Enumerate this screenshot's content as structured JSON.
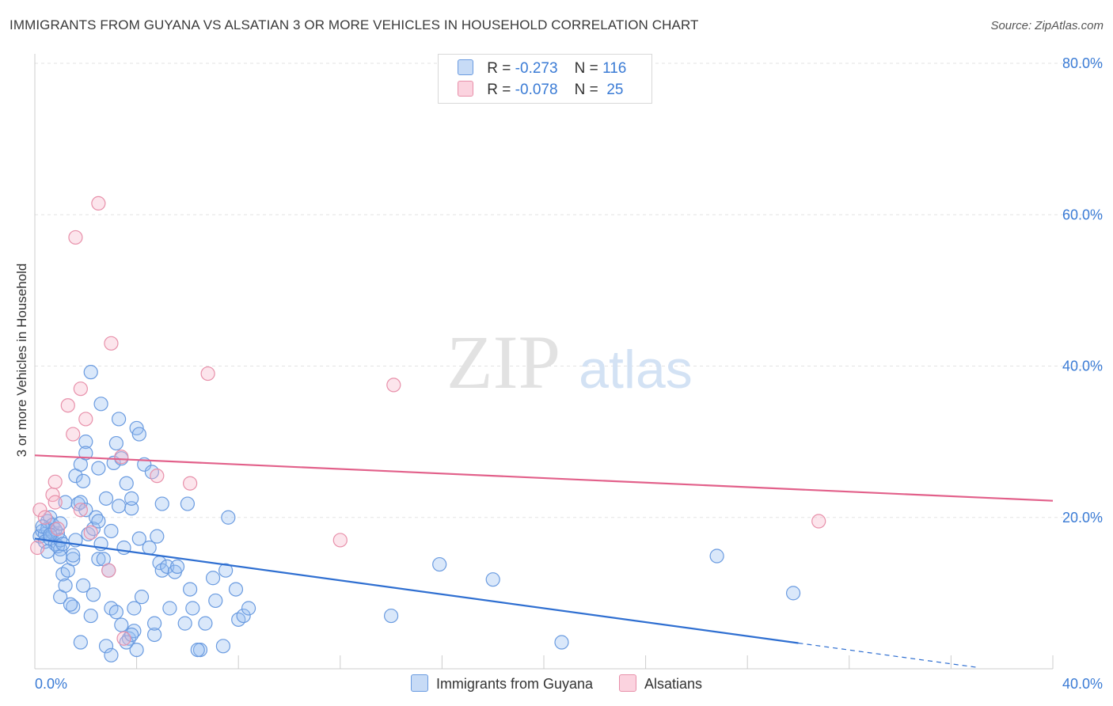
{
  "title": "IMMIGRANTS FROM GUYANA VS ALSATIAN 3 OR MORE VEHICLES IN HOUSEHOLD CORRELATION CHART",
  "source": "Source: ZipAtlas.com",
  "watermark": {
    "zip": "ZIP",
    "atlas": "atlas"
  },
  "legend": {
    "rows": [
      {
        "r_label": "R =",
        "r": "-0.273",
        "n_label": "N =",
        "n": "116",
        "color": "#aac8f0",
        "border": "#6a9be0"
      },
      {
        "r_label": "R =",
        "r": "-0.078",
        "n_label": "N =",
        "n": "25",
        "color": "#f7c2d2",
        "border": "#e890aa"
      }
    ]
  },
  "bottom_legend": [
    "Immigrants from Guyana",
    "Alsatians"
  ],
  "chart_data": {
    "type": "scatter",
    "title": "IMMIGRANTS FROM GUYANA VS ALSATIAN 3 OR MORE VEHICLES IN HOUSEHOLD CORRELATION CHART",
    "xlabel": "",
    "ylabel": "3 or more Vehicles in Household",
    "xlim": [
      0,
      40
    ],
    "ylim": [
      0,
      80
    ],
    "x_tick_labels": [
      "0.0%",
      "40.0%"
    ],
    "y_tick_labels": [
      "20.0%",
      "40.0%",
      "60.0%",
      "80.0%"
    ],
    "y_ticks": [
      20,
      40,
      60,
      80
    ],
    "grid": true,
    "legend_position": "top-center",
    "series": [
      {
        "name": "Immigrants from Guyana",
        "color": "#6a9be0",
        "fill": "rgba(150,190,240,0.35)",
        "trend": {
          "x": [
            0,
            30
          ],
          "y": [
            17.2,
            3.4
          ],
          "dashed_to": [
            37,
            0.2
          ],
          "color": "#2f6fd1"
        },
        "points": [
          [
            0.2,
            17.5
          ],
          [
            0.3,
            18.2
          ],
          [
            0.4,
            17.8
          ],
          [
            0.5,
            18.5
          ],
          [
            0.4,
            16.8
          ],
          [
            0.6,
            17.2
          ],
          [
            0.5,
            19.5
          ],
          [
            0.7,
            18.0
          ],
          [
            0.8,
            16.5
          ],
          [
            0.9,
            17.9
          ],
          [
            0.6,
            20.0
          ],
          [
            0.7,
            19.0
          ],
          [
            0.8,
            18.4
          ],
          [
            1.0,
            15.8
          ],
          [
            0.5,
            15.5
          ],
          [
            0.9,
            16.2
          ],
          [
            1.0,
            17.0
          ],
          [
            1.1,
            16.5
          ],
          [
            0.3,
            18.8
          ],
          [
            0.6,
            17.7
          ],
          [
            1.0,
            19.2
          ],
          [
            1.2,
            22.0
          ],
          [
            1.0,
            14.8
          ],
          [
            1.1,
            12.5
          ],
          [
            1.0,
            9.5
          ],
          [
            1.3,
            13.0
          ],
          [
            1.2,
            11.0
          ],
          [
            1.5,
            8.2
          ],
          [
            1.5,
            14.5
          ],
          [
            1.6,
            17.0
          ],
          [
            1.6,
            25.5
          ],
          [
            1.7,
            21.8
          ],
          [
            1.8,
            22.0
          ],
          [
            1.8,
            27.0
          ],
          [
            1.9,
            24.8
          ],
          [
            1.9,
            11.0
          ],
          [
            2.0,
            30.0
          ],
          [
            2.0,
            28.5
          ],
          [
            2.0,
            21.0
          ],
          [
            2.2,
            39.2
          ],
          [
            2.1,
            17.8
          ],
          [
            2.3,
            18.5
          ],
          [
            2.4,
            20.0
          ],
          [
            2.5,
            19.5
          ],
          [
            2.2,
            7.0
          ],
          [
            2.3,
            9.8
          ],
          [
            2.5,
            14.5
          ],
          [
            2.6,
            16.5
          ],
          [
            2.5,
            26.5
          ],
          [
            2.6,
            35.0
          ],
          [
            2.7,
            14.5
          ],
          [
            2.8,
            22.5
          ],
          [
            2.9,
            13.0
          ],
          [
            3.0,
            8.0
          ],
          [
            3.0,
            18.2
          ],
          [
            3.1,
            27.2
          ],
          [
            3.2,
            29.8
          ],
          [
            3.2,
            7.5
          ],
          [
            3.3,
            21.5
          ],
          [
            3.3,
            33.0
          ],
          [
            3.4,
            27.8
          ],
          [
            3.4,
            5.8
          ],
          [
            3.5,
            16.0
          ],
          [
            3.6,
            24.5
          ],
          [
            3.7,
            4.0
          ],
          [
            3.8,
            21.2
          ],
          [
            3.8,
            22.5
          ],
          [
            3.9,
            5.0
          ],
          [
            3.9,
            8.0
          ],
          [
            4.0,
            2.5
          ],
          [
            4.0,
            31.8
          ],
          [
            4.1,
            31.0
          ],
          [
            4.1,
            17.2
          ],
          [
            4.2,
            9.5
          ],
          [
            4.3,
            27.0
          ],
          [
            4.5,
            16.0
          ],
          [
            4.6,
            26.0
          ],
          [
            4.7,
            4.5
          ],
          [
            4.7,
            6.0
          ],
          [
            4.8,
            17.5
          ],
          [
            4.9,
            14.0
          ],
          [
            5.0,
            13.0
          ],
          [
            5.0,
            21.8
          ],
          [
            5.2,
            13.5
          ],
          [
            5.3,
            8.0
          ],
          [
            5.5,
            12.8
          ],
          [
            5.6,
            13.5
          ],
          [
            5.9,
            6.0
          ],
          [
            6.0,
            21.8
          ],
          [
            6.1,
            10.5
          ],
          [
            6.2,
            8.0
          ],
          [
            6.5,
            2.5
          ],
          [
            6.7,
            6.0
          ],
          [
            7.0,
            12.0
          ],
          [
            7.1,
            9.0
          ],
          [
            7.4,
            3.0
          ],
          [
            7.5,
            13.0
          ],
          [
            7.6,
            20.0
          ],
          [
            7.9,
            10.5
          ],
          [
            8.0,
            6.5
          ],
          [
            8.2,
            7.0
          ],
          [
            8.4,
            8.0
          ],
          [
            1.8,
            3.5
          ],
          [
            2.8,
            3.0
          ],
          [
            3.0,
            1.8
          ],
          [
            3.6,
            3.5
          ],
          [
            3.8,
            4.5
          ],
          [
            6.4,
            2.5
          ],
          [
            1.4,
            8.5
          ],
          [
            1.5,
            15.0
          ],
          [
            14.0,
            7.0
          ],
          [
            15.9,
            13.8
          ],
          [
            18.0,
            11.8
          ],
          [
            20.7,
            3.5
          ],
          [
            26.8,
            14.9
          ],
          [
            29.8,
            10.0
          ]
        ]
      },
      {
        "name": "Alsatians",
        "color": "#e890aa",
        "fill": "rgba(245,180,200,0.35)",
        "trend": {
          "x": [
            0,
            40
          ],
          "y": [
            28.2,
            22.2
          ],
          "color": "#e2608a"
        },
        "points": [
          [
            0.1,
            16.0
          ],
          [
            0.2,
            21.0
          ],
          [
            0.4,
            20.0
          ],
          [
            0.7,
            23.0
          ],
          [
            0.8,
            24.7
          ],
          [
            0.8,
            22.0
          ],
          [
            0.9,
            18.5
          ],
          [
            1.3,
            34.8
          ],
          [
            1.5,
            31.0
          ],
          [
            1.6,
            57.0
          ],
          [
            1.8,
            21.0
          ],
          [
            1.8,
            37.0
          ],
          [
            2.0,
            33.0
          ],
          [
            2.2,
            18.0
          ],
          [
            2.5,
            61.5
          ],
          [
            2.9,
            13.0
          ],
          [
            3.0,
            43.0
          ],
          [
            3.4,
            28.0
          ],
          [
            3.5,
            4.0
          ],
          [
            4.8,
            25.5
          ],
          [
            6.1,
            24.5
          ],
          [
            6.8,
            39.0
          ],
          [
            12.0,
            17.0
          ],
          [
            14.1,
            37.5
          ],
          [
            30.8,
            19.5
          ]
        ]
      }
    ]
  }
}
